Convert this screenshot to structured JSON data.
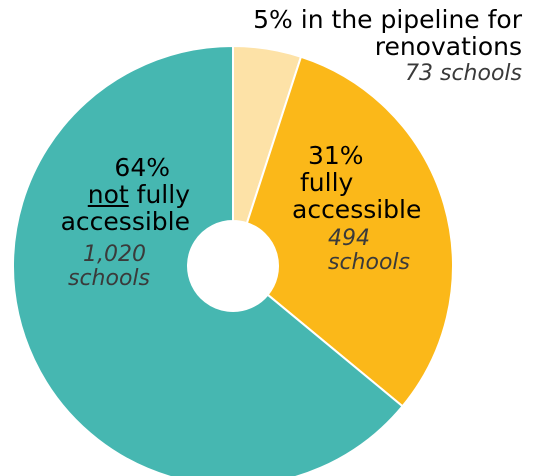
{
  "chart_data": {
    "type": "pie",
    "variant": "donut",
    "slices": [
      {
        "pct": "5%",
        "value": 5,
        "label": "in the pipeline for renovations",
        "count": "73 schools",
        "color": "#FDE2A7"
      },
      {
        "pct": "31%",
        "value": 31,
        "label": "fully accessible",
        "count": "494 schools",
        "color": "#FBB819"
      },
      {
        "pct": "64%",
        "value": 64,
        "label": "not fully accessible",
        "count": "1,020 schools",
        "color": "#46B7B1"
      }
    ]
  },
  "labels": {
    "pipeline": {
      "pct": "5%",
      "text_1": "in the pipeline for",
      "text_2": "renovations",
      "count": "73 schools"
    },
    "accessible": {
      "pct": "31%",
      "line_1": "fully",
      "line_2": "accessible",
      "count_1": "494",
      "count_2": "schools"
    },
    "not_accessible": {
      "pct": "64%",
      "word_not": "not",
      "line_1_rest": " fully",
      "line_2": "accessible",
      "count_1": "1,020",
      "count_2": "schools"
    }
  }
}
